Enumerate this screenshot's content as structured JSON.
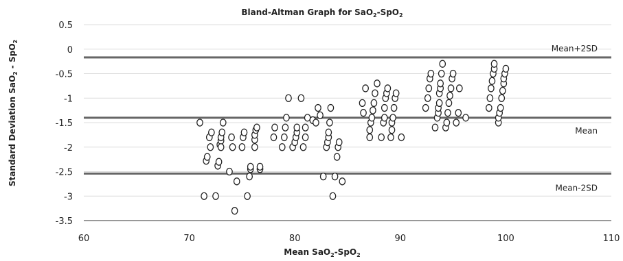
{
  "chart_data": {
    "type": "scatter",
    "title": "Bland-Altman Graph for SaO",
    "title_sub": "2",
    "title_suffix": "-SpO",
    "title_sub2": "2",
    "xlabel": "Mean SaO",
    "xlabel_sub": "2",
    "xlabel_suffix": "-SpO",
    "xlabel_sub2": "2",
    "ylabel": "Standard Deviation SaO",
    "ylabel_sub": "2",
    "ylabel_suffix": " - SpO",
    "ylabel_sub2": "2",
    "xlim": [
      60,
      110
    ],
    "ylim": [
      -3.5,
      0.5
    ],
    "xticks": [
      60,
      70,
      80,
      90,
      100,
      110
    ],
    "yticks": [
      0.5,
      0,
      -0.5,
      -1,
      -1.5,
      -2,
      -2.5,
      -3,
      -3.5
    ],
    "ytick_labels": [
      "0.5",
      "0",
      "-0.5",
      "-1",
      "-1.5",
      "-2",
      "-2.5",
      "-3",
      "-3.5"
    ],
    "grid": "horizontal",
    "reference_lines": [
      {
        "label": "Mean+2SD",
        "y": -0.17
      },
      {
        "label": "Mean",
        "y": -1.4
      },
      {
        "label": "Mean-2SD",
        "y": -2.54
      }
    ],
    "points": [
      [
        71.0,
        -1.5
      ],
      [
        71.4,
        -3.0
      ],
      [
        71.6,
        -2.28
      ],
      [
        71.7,
        -2.2
      ],
      [
        71.9,
        -1.8
      ],
      [
        72.0,
        -2.0
      ],
      [
        72.1,
        -1.7
      ],
      [
        72.5,
        -3.0
      ],
      [
        72.7,
        -2.38
      ],
      [
        72.8,
        -2.3
      ],
      [
        72.9,
        -1.95
      ],
      [
        73.0,
        -1.87
      ],
      [
        73.0,
        -1.8
      ],
      [
        73.0,
        -2.0
      ],
      [
        73.1,
        -1.7
      ],
      [
        73.2,
        -1.5
      ],
      [
        73.8,
        -2.5
      ],
      [
        74.0,
        -1.8
      ],
      [
        74.1,
        -2.0
      ],
      [
        74.3,
        -3.3
      ],
      [
        74.5,
        -2.7
      ],
      [
        75.0,
        -2.0
      ],
      [
        75.1,
        -1.8
      ],
      [
        75.2,
        -1.7
      ],
      [
        75.5,
        -3.0
      ],
      [
        75.7,
        -2.6
      ],
      [
        75.8,
        -2.45
      ],
      [
        75.8,
        -2.4
      ],
      [
        76.2,
        -2.0
      ],
      [
        76.2,
        -1.85
      ],
      [
        76.2,
        -1.75
      ],
      [
        76.3,
        -1.65
      ],
      [
        76.4,
        -1.6
      ],
      [
        76.7,
        -2.45
      ],
      [
        76.7,
        -2.4
      ],
      [
        78.0,
        -1.8
      ],
      [
        78.1,
        -1.6
      ],
      [
        78.8,
        -2.0
      ],
      [
        79.0,
        -1.8
      ],
      [
        79.1,
        -1.6
      ],
      [
        79.2,
        -1.4
      ],
      [
        79.4,
        -1.0
      ],
      [
        79.8,
        -2.0
      ],
      [
        80.0,
        -1.9
      ],
      [
        80.1,
        -1.8
      ],
      [
        80.2,
        -1.7
      ],
      [
        80.2,
        -1.6
      ],
      [
        80.6,
        -1.0
      ],
      [
        80.8,
        -2.0
      ],
      [
        81.0,
        -1.8
      ],
      [
        81.0,
        -1.6
      ],
      [
        81.2,
        -1.4
      ],
      [
        81.7,
        -1.45
      ],
      [
        82.0,
        -1.5
      ],
      [
        82.2,
        -1.2
      ],
      [
        82.4,
        -1.35
      ],
      [
        82.7,
        -2.6
      ],
      [
        83.0,
        -2.0
      ],
      [
        83.1,
        -1.9
      ],
      [
        83.2,
        -1.8
      ],
      [
        83.2,
        -1.7
      ],
      [
        83.3,
        -1.5
      ],
      [
        83.4,
        -1.2
      ],
      [
        83.6,
        -3.0
      ],
      [
        83.8,
        -2.6
      ],
      [
        84.0,
        -2.2
      ],
      [
        84.1,
        -2.0
      ],
      [
        84.2,
        -1.9
      ],
      [
        84.5,
        -2.7
      ],
      [
        86.4,
        -1.1
      ],
      [
        86.5,
        -1.3
      ],
      [
        86.7,
        -0.8
      ],
      [
        87.1,
        -1.8
      ],
      [
        87.1,
        -1.65
      ],
      [
        87.2,
        -1.5
      ],
      [
        87.3,
        -1.4
      ],
      [
        87.4,
        -1.25
      ],
      [
        87.5,
        -1.1
      ],
      [
        87.6,
        -0.9
      ],
      [
        87.8,
        -0.7
      ],
      [
        88.2,
        -1.8
      ],
      [
        88.4,
        -1.5
      ],
      [
        88.5,
        -1.4
      ],
      [
        88.5,
        -1.2
      ],
      [
        88.6,
        -1.0
      ],
      [
        88.7,
        -0.9
      ],
      [
        88.8,
        -0.8
      ],
      [
        89.1,
        -1.8
      ],
      [
        89.2,
        -1.65
      ],
      [
        89.2,
        -1.5
      ],
      [
        89.3,
        -1.4
      ],
      [
        89.4,
        -1.2
      ],
      [
        89.5,
        -1.0
      ],
      [
        89.6,
        -0.9
      ],
      [
        90.1,
        -1.8
      ],
      [
        92.4,
        -1.2
      ],
      [
        92.6,
        -1.0
      ],
      [
        92.7,
        -0.8
      ],
      [
        92.8,
        -0.6
      ],
      [
        92.9,
        -0.5
      ],
      [
        93.3,
        -1.6
      ],
      [
        93.5,
        -1.4
      ],
      [
        93.6,
        -1.3
      ],
      [
        93.6,
        -1.2
      ],
      [
        93.7,
        -1.1
      ],
      [
        93.7,
        -0.9
      ],
      [
        93.8,
        -0.8
      ],
      [
        93.8,
        -0.7
      ],
      [
        93.9,
        -0.5
      ],
      [
        94.0,
        -0.3
      ],
      [
        94.3,
        -1.6
      ],
      [
        94.4,
        -1.5
      ],
      [
        94.5,
        -1.3
      ],
      [
        94.6,
        -1.1
      ],
      [
        94.7,
        -0.95
      ],
      [
        94.8,
        -0.8
      ],
      [
        94.9,
        -0.6
      ],
      [
        95.0,
        -0.5
      ],
      [
        95.3,
        -1.5
      ],
      [
        95.5,
        -1.3
      ],
      [
        95.6,
        -0.8
      ],
      [
        96.2,
        -1.4
      ],
      [
        98.4,
        -1.2
      ],
      [
        98.5,
        -1.0
      ],
      [
        98.6,
        -0.8
      ],
      [
        98.7,
        -0.65
      ],
      [
        98.8,
        -0.5
      ],
      [
        98.9,
        -0.4
      ],
      [
        98.9,
        -0.3
      ],
      [
        99.3,
        -1.5
      ],
      [
        99.3,
        -1.4
      ],
      [
        99.4,
        -1.3
      ],
      [
        99.5,
        -1.2
      ],
      [
        99.6,
        -1.0
      ],
      [
        99.7,
        -0.85
      ],
      [
        99.8,
        -0.7
      ],
      [
        99.8,
        -0.6
      ],
      [
        99.9,
        -0.5
      ],
      [
        100.0,
        -0.4
      ]
    ]
  }
}
